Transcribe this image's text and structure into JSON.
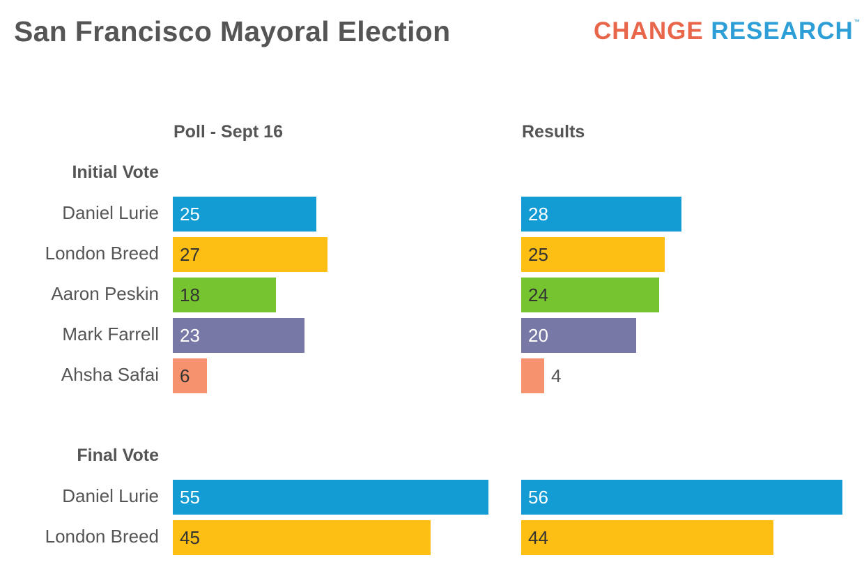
{
  "title": "San Francisco Mayoral Election",
  "logo": {
    "part1": "CHANGE",
    "part2": "RESEARCH",
    "tm": "™",
    "color1": "#E8664A",
    "color2": "#2E9FD6"
  },
  "chart_data": {
    "type": "bar",
    "orientation": "horizontal",
    "columns": [
      "Poll - Sept 16",
      "Results"
    ],
    "sections": [
      {
        "label": "Initial Vote",
        "rows": [
          {
            "name": "Daniel Lurie",
            "color": "#139BD3",
            "text_color": "#ffffff",
            "values": [
              25,
              28
            ]
          },
          {
            "name": "London Breed",
            "color": "#FDBF13",
            "text_color": "#333333",
            "values": [
              27,
              25
            ]
          },
          {
            "name": "Aaron Peskin",
            "color": "#76C42F",
            "text_color": "#333333",
            "values": [
              18,
              24
            ]
          },
          {
            "name": "Mark Farrell",
            "color": "#7878A6",
            "text_color": "#ffffff",
            "values": [
              23,
              20
            ]
          },
          {
            "name": "Ahsha Safai",
            "color": "#F7926F",
            "text_color": "#333333",
            "values": [
              6,
              4
            ]
          }
        ]
      },
      {
        "label": "Final Vote",
        "rows": [
          {
            "name": "Daniel Lurie",
            "color": "#139BD3",
            "text_color": "#ffffff",
            "values": [
              55,
              56
            ]
          },
          {
            "name": "London Breed",
            "color": "#FDBF13",
            "text_color": "#333333",
            "values": [
              45,
              44
            ]
          }
        ]
      }
    ]
  }
}
